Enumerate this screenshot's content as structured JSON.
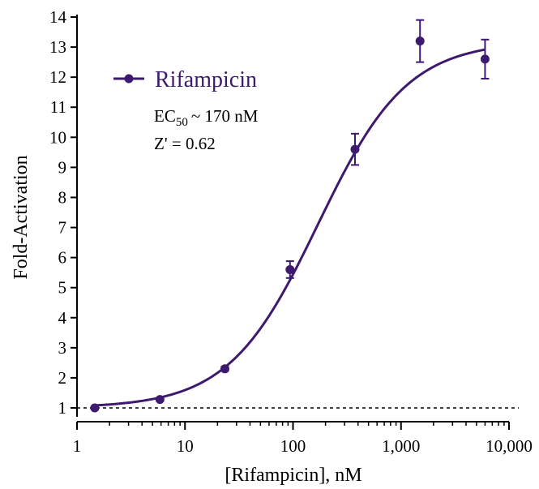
{
  "chart_data": {
    "type": "scatter",
    "xscale": "log",
    "xlim": [
      1,
      10000
    ],
    "ylim": [
      1,
      14
    ],
    "xlabel": "[Rifampicin], nM",
    "ylabel": "Fold-Activation",
    "xticks": [
      1,
      10,
      100,
      1000,
      10000
    ],
    "xtick_labels": [
      "1",
      "10",
      "100",
      "1,000",
      "10,000"
    ],
    "yticks": [
      1,
      2,
      3,
      4,
      5,
      6,
      7,
      8,
      9,
      10,
      11,
      12,
      13,
      14
    ],
    "ytick_labels": [
      "1",
      "2",
      "3",
      "4",
      "5",
      "6",
      "7",
      "8",
      "9",
      "10",
      "11",
      "12",
      "13",
      "14"
    ],
    "baseline": 1,
    "legend_position": "top-left",
    "color": "#3d1a6e",
    "series": [
      {
        "name": "Rifampicin",
        "points": [
          {
            "x": 1.46,
            "y": 1.0,
            "err": 0.05
          },
          {
            "x": 5.86,
            "y": 1.28,
            "err": 0.05
          },
          {
            "x": 23.4,
            "y": 2.3,
            "err": 0.07
          },
          {
            "x": 93.8,
            "y": 5.6,
            "err": 0.28
          },
          {
            "x": 375,
            "y": 9.6,
            "err": 0.52
          },
          {
            "x": 1500,
            "y": 13.2,
            "err": 0.7
          },
          {
            "x": 6000,
            "y": 12.6,
            "err": 0.65
          }
        ],
        "fit": {
          "bottom": 1.0,
          "top": 13.2,
          "ec50": 170,
          "hill": 1.05
        }
      }
    ],
    "annotations": {
      "ec50_prefix": "EC",
      "ec50_sub": "50",
      "ec50_suffix": "~ 170 nM",
      "zprime": "Z' = 0.62"
    }
  }
}
